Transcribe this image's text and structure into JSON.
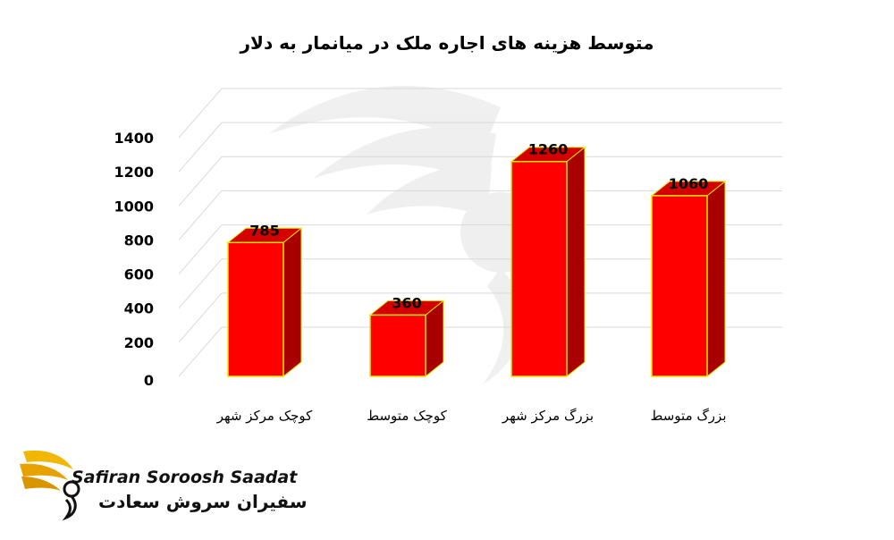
{
  "chart_data": {
    "type": "bar",
    "title": "متوسط هزینه های اجاره ملک در میانمار به دلار",
    "categories": [
      "کوچک  مرکز شهر",
      "کوچک متوسط",
      "بزرگ مرکز شهر",
      "بزرگ متوسط"
    ],
    "values": [
      785,
      360,
      1260,
      1060
    ],
    "data_labels": [
      "785",
      "360",
      "1260",
      "1060"
    ],
    "ylim": [
      0,
      1400
    ],
    "yticks": [
      "0",
      "200",
      "400",
      "600",
      "800",
      "1000",
      "1200",
      "1400"
    ],
    "grid": true,
    "legend": "none",
    "three_d": true
  },
  "colors": {
    "bar_front": "#ff0000",
    "bar_side": "#a80000",
    "bar_top": "#d40000",
    "bar_edge": "#e6e600",
    "grid": "#d9d9d9",
    "text": "#000000"
  },
  "logo": {
    "name_en": "Safiran Soroosh Saadat",
    "name_fa": "سفیران سروش سعادت",
    "icon": "golden-bird-icon"
  }
}
